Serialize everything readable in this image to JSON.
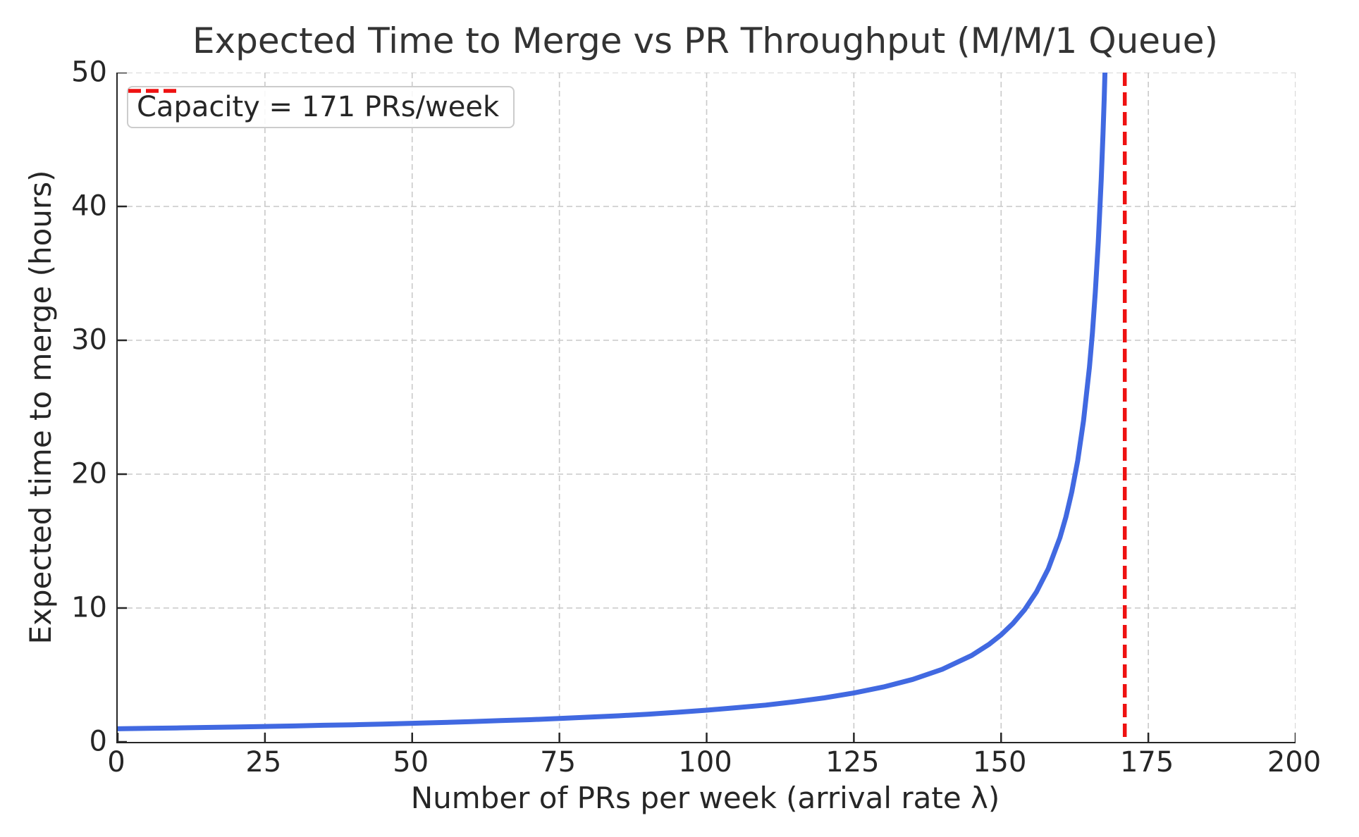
{
  "chart_data": {
    "type": "line",
    "title": "Expected Time to Merge vs PR Throughput (M/M/1 Queue)",
    "xlabel": "Number of PRs per week (arrival rate λ)",
    "ylabel": "Expected time to merge (hours)",
    "xlim": [
      0,
      200
    ],
    "ylim": [
      0,
      50
    ],
    "xticks": [
      0,
      25,
      50,
      75,
      100,
      125,
      150,
      175,
      200
    ],
    "yticks": [
      0,
      10,
      20,
      30,
      40,
      50
    ],
    "grid": "dashed-both-axes",
    "legend_position": "upper-left",
    "series": [
      {
        "name": "expected_time_to_merge_hours",
        "color": "#4169e1",
        "points": [
          [
            0,
            0.98
          ],
          [
            5,
            1.01
          ],
          [
            10,
            1.04
          ],
          [
            15,
            1.08
          ],
          [
            20,
            1.11
          ],
          [
            25,
            1.15
          ],
          [
            30,
            1.19
          ],
          [
            35,
            1.24
          ],
          [
            40,
            1.28
          ],
          [
            45,
            1.33
          ],
          [
            50,
            1.39
          ],
          [
            55,
            1.45
          ],
          [
            60,
            1.51
          ],
          [
            65,
            1.59
          ],
          [
            70,
            1.66
          ],
          [
            75,
            1.75
          ],
          [
            80,
            1.85
          ],
          [
            85,
            1.95
          ],
          [
            90,
            2.07
          ],
          [
            95,
            2.21
          ],
          [
            100,
            2.37
          ],
          [
            105,
            2.55
          ],
          [
            110,
            2.75
          ],
          [
            115,
            3.0
          ],
          [
            120,
            3.29
          ],
          [
            125,
            3.65
          ],
          [
            130,
            4.1
          ],
          [
            135,
            4.67
          ],
          [
            140,
            5.42
          ],
          [
            145,
            6.46
          ],
          [
            148,
            7.3
          ],
          [
            150,
            8.0
          ],
          [
            152,
            8.84
          ],
          [
            154,
            9.88
          ],
          [
            156,
            11.2
          ],
          [
            158,
            12.92
          ],
          [
            160,
            15.27
          ],
          [
            161,
            16.8
          ],
          [
            162,
            18.67
          ],
          [
            163,
            21.0
          ],
          [
            164,
            24.0
          ],
          [
            165,
            28.0
          ],
          [
            165.5,
            30.55
          ],
          [
            166,
            33.6
          ],
          [
            166.5,
            37.33
          ],
          [
            167,
            42.0
          ],
          [
            167.3,
            45.41
          ],
          [
            167.5,
            48.0
          ],
          [
            167.64,
            50.0
          ]
        ]
      }
    ],
    "vline": {
      "x": 171,
      "color": "#ee1111",
      "style": "dashed"
    },
    "legend": {
      "entries": [
        {
          "label": "Capacity = 171 PRs/week",
          "color": "#ee1111",
          "style": "dashed"
        }
      ]
    }
  },
  "colors": {
    "curve": "#4169e1",
    "capacity_line": "#ee1111",
    "grid": "#c9c9c9",
    "text": "#262626",
    "spine": "#262626"
  }
}
